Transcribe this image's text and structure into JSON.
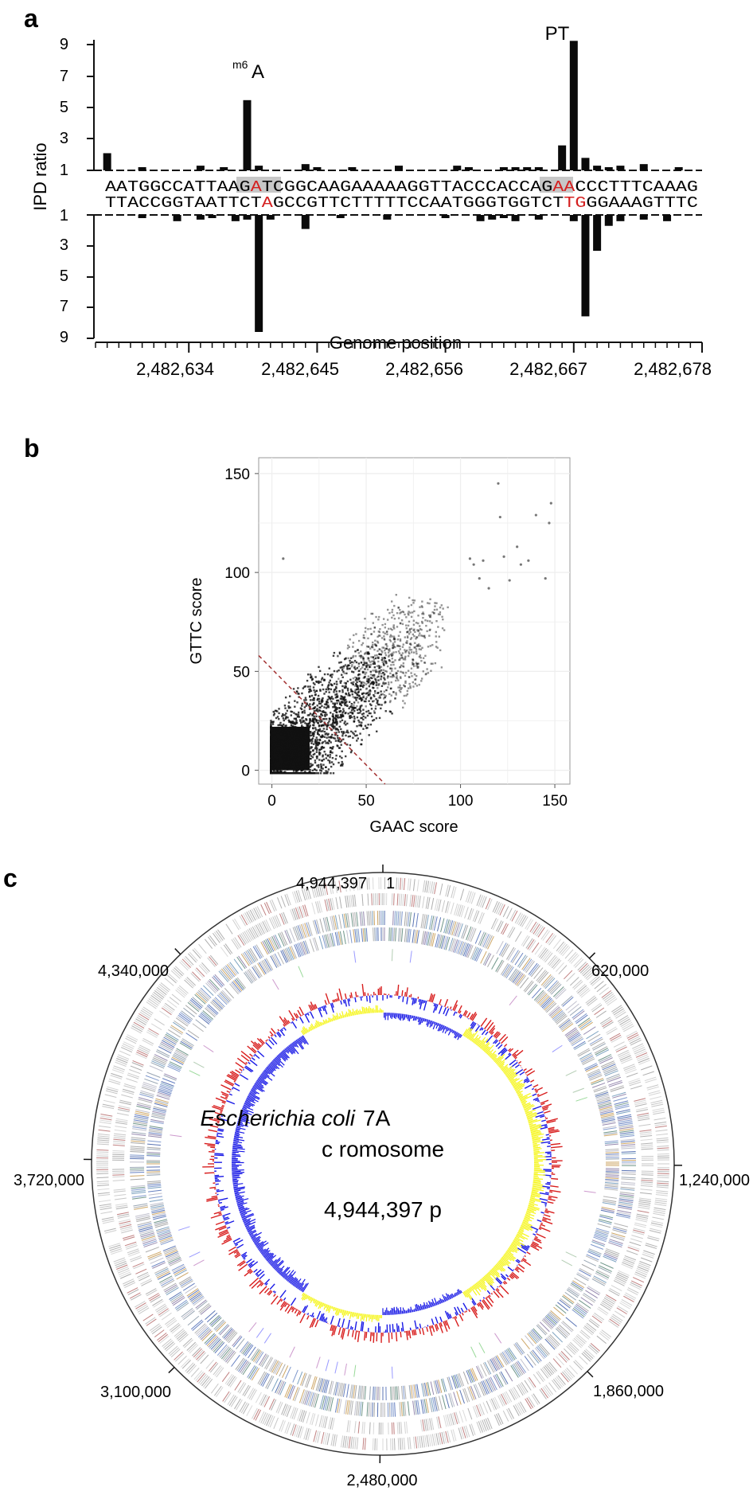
{
  "panels": {
    "a": {
      "letter": "a",
      "ylabel": "IPD ratio",
      "xlabel": "Genome position",
      "y_ticks": [
        "9",
        "7",
        "5",
        "3",
        "1",
        "1",
        "3",
        "5",
        "7",
        "9"
      ],
      "x_ticks": [
        "2,482,634",
        "2,482,645",
        "2,482,656",
        "2,482,667",
        "2,482,678"
      ],
      "top_sequence": "AATGGCCATTAAGATCGGCAAGAAAAAGGTTACCCACCAGAACCCTTTCAAAG",
      "bottom_sequence": "TTACCGGTAATTCTAGCCGTTCTTTTTCCAATGGGTGGTCTTGGGAAAGTTTC",
      "annotation_m6a_sup": "m6",
      "annotation_m6a_base": "A",
      "annotation_pt": "PT"
    },
    "b": {
      "letter": "b"
    },
    "c": {
      "letter": "c",
      "title_italic": "Escherichia coli",
      "title_strain": "7A",
      "title_line2": "c romosome",
      "title_line3": "4,944,397  p",
      "tick_labels": {
        "top_left": "4,944,397",
        "top_right": "1",
        "pos_620000": "620,000",
        "pos_1240000": "1,240,000",
        "pos_1860000": "1,860,000",
        "pos_2480000": "2,480,000",
        "pos_3100000": "3,100,000",
        "pos_3720000": "3,720,000",
        "pos_4340000": "4,340,000"
      },
      "colors": {
        "gc_content": "#d81e1e",
        "gc_skew_neg": "#1a1ae6",
        "gc_skew_pos": "#f5f516"
      }
    }
  },
  "chart_data": [
    {
      "type": "bar",
      "panel": "a",
      "xlabel": "Genome position",
      "ylabel": "IPD ratio",
      "x_ticks": [
        2482634,
        2482645,
        2482656,
        2482667,
        2482678
      ],
      "x_range": [
        2482626,
        2482678
      ],
      "ylim": [
        1,
        9.5
      ],
      "series": [
        {
          "strand": "top",
          "positions": [
            2482627,
            2482630,
            2482635,
            2482637,
            2482639,
            2482640,
            2482644,
            2482645,
            2482648,
            2482652,
            2482657,
            2482658,
            2482661,
            2482662,
            2482663,
            2482664,
            2482666,
            2482667,
            2482668,
            2482669,
            2482670,
            2482671,
            2482673,
            2482676
          ],
          "values": [
            2.1,
            1.1,
            1.3,
            1.2,
            5.5,
            1.3,
            1.4,
            1.2,
            1.2,
            1.3,
            1.3,
            1.2,
            1.1,
            1.1,
            1.2,
            1.2,
            2.6,
            9.3,
            1.8,
            1.3,
            1.2,
            1.3,
            1.4,
            1.2
          ]
        },
        {
          "strand": "bottom",
          "positions": [
            2482630,
            2482633,
            2482635,
            2482636,
            2482638,
            2482639,
            2482640,
            2482641,
            2482644,
            2482647,
            2482651,
            2482656,
            2482659,
            2482660,
            2482661,
            2482662,
            2482664,
            2482667,
            2482668,
            2482669,
            2482670,
            2482671,
            2482673,
            2482675
          ],
          "values": [
            1.2,
            1.4,
            1.3,
            1.2,
            1.4,
            1.3,
            8.5,
            1.3,
            1.9,
            1.2,
            1.3,
            1.2,
            1.4,
            1.3,
            1.2,
            1.4,
            1.3,
            1.4,
            7.5,
            3.3,
            1.7,
            1.4,
            1.3,
            1.4
          ]
        }
      ]
    },
    {
      "type": "scatter",
      "panel": "b",
      "xlabel": "GAAC score",
      "ylabel": "GTTC score",
      "xlim": [
        -7,
        158
      ],
      "ylim": [
        -7,
        158
      ],
      "x_ticks": [
        0,
        50,
        100,
        150
      ],
      "y_ticks": [
        0,
        50,
        100,
        150
      ],
      "grid": true,
      "threshold_line": {
        "x": [
          -7,
          60
        ],
        "y": [
          58,
          -7
        ],
        "color": "#a33030",
        "style": "dashed"
      },
      "outliers": {
        "x": [
          6,
          105,
          107,
          110,
          112,
          115,
          120,
          121,
          123,
          126,
          130,
          132,
          136,
          140,
          145,
          147,
          148
        ],
        "y": [
          107,
          107,
          104,
          97,
          106,
          92,
          145,
          128,
          108,
          96,
          113,
          104,
          106,
          129,
          97,
          125,
          135
        ]
      }
    },
    {
      "type": "circular_genome",
      "panel": "c",
      "genome_size": 4944397,
      "ticks": [
        0,
        620000,
        1240000,
        1860000,
        2480000,
        3100000,
        3720000,
        4340000
      ]
    }
  ]
}
